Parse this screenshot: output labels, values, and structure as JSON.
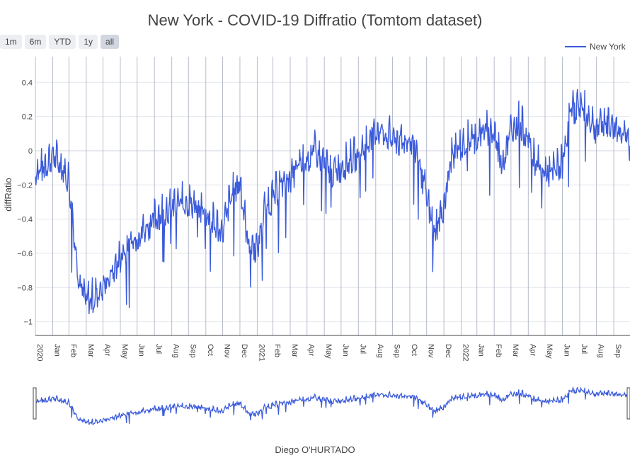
{
  "chart": {
    "title": "New York - COVID-19 Diffratio (Tomtom dataset)",
    "footer": "Diego O'HURTADO"
  },
  "range_selector": {
    "buttons": [
      "1m",
      "6m",
      "YTD",
      "1y",
      "all"
    ],
    "active": "all"
  },
  "colors": {
    "line": "#3b5bdb",
    "grid": "#e6e6ef",
    "monthline": "#9aa1b6",
    "zero": "#cfd3dc"
  },
  "chart_data": {
    "type": "line",
    "title": "New York - COVID-19 Diffratio (Tomtom dataset)",
    "xlabel": "",
    "ylabel": "diffRatio",
    "ylim": [
      -1.08,
      0.55
    ],
    "yticks": [
      0.4,
      0.2,
      0,
      -0.2,
      -0.4,
      -0.6,
      -0.8,
      -1
    ],
    "ytick_labels": [
      "0.4",
      "0.2",
      "0",
      "−0.2",
      "−0.4",
      "−0.6",
      "−0.8",
      "−1"
    ],
    "x_start": "2020-01-01",
    "x_end": "2022-11-30",
    "xtick_labels": [
      "2020",
      "Jan",
      "Feb",
      "Mar",
      "Apr",
      "May",
      "Jun",
      "Jul",
      "Aug",
      "Sep",
      "Oct",
      "Nov",
      "Dec",
      "2021",
      "Feb",
      "Mar",
      "Apr",
      "May",
      "Jun",
      "Jul",
      "Aug",
      "Sep",
      "Oct",
      "Nov",
      "Dec",
      "2022",
      "Jan",
      "Feb",
      "Mar",
      "Apr",
      "May",
      "Jun",
      "Jul",
      "Aug",
      "Sep",
      "Oct",
      "Nov"
    ],
    "legend": {
      "placement": "top-right",
      "entries": [
        "New York"
      ]
    },
    "grid": true,
    "series": [
      {
        "name": "New York",
        "x": [
          "2020-01-01",
          "2020-01-15",
          "2020-02-01",
          "2020-02-15",
          "2020-03-01",
          "2020-03-10",
          "2020-03-20",
          "2020-04-01",
          "2020-04-15",
          "2020-05-01",
          "2020-05-15",
          "2020-06-01",
          "2020-06-15",
          "2020-07-01",
          "2020-07-15",
          "2020-08-01",
          "2020-08-15",
          "2020-09-01",
          "2020-09-15",
          "2020-10-01",
          "2020-10-15",
          "2020-11-01",
          "2020-11-15",
          "2020-12-01",
          "2020-12-15",
          "2021-01-01",
          "2021-01-15",
          "2021-02-01",
          "2021-02-15",
          "2021-03-01",
          "2021-03-15",
          "2021-04-01",
          "2021-04-15",
          "2021-05-01",
          "2021-05-15",
          "2021-06-01",
          "2021-06-15",
          "2021-07-01",
          "2021-07-15",
          "2021-08-01",
          "2021-08-15",
          "2021-09-01",
          "2021-09-15",
          "2021-10-01",
          "2021-10-15",
          "2021-11-01",
          "2021-11-15",
          "2021-12-01",
          "2021-12-15",
          "2022-01-01",
          "2022-01-15",
          "2022-02-01",
          "2022-02-15",
          "2022-03-01",
          "2022-03-15",
          "2022-04-01",
          "2022-04-15",
          "2022-05-01",
          "2022-05-15",
          "2022-06-01",
          "2022-06-15",
          "2022-07-01",
          "2022-07-15",
          "2022-08-01",
          "2022-08-15",
          "2022-09-01",
          "2022-09-15",
          "2022-10-01",
          "2022-10-15",
          "2022-11-01",
          "2022-11-15",
          "2022-11-30"
        ],
        "y": [
          -0.15,
          -0.12,
          -0.05,
          -0.1,
          -0.2,
          -0.5,
          -0.8,
          -0.9,
          -0.88,
          -0.82,
          -0.75,
          -0.65,
          -0.58,
          -0.52,
          -0.48,
          -0.42,
          -0.38,
          -0.35,
          -0.33,
          -0.32,
          -0.35,
          -0.38,
          -0.45,
          -0.5,
          -0.3,
          -0.2,
          -0.55,
          -0.6,
          -0.35,
          -0.3,
          -0.22,
          -0.18,
          -0.12,
          -0.08,
          -0.02,
          -0.1,
          -0.15,
          -0.12,
          -0.08,
          -0.05,
          0.02,
          0.1,
          0.08,
          0.05,
          0.02,
          0.05,
          -0.05,
          -0.3,
          -0.5,
          -0.35,
          -0.05,
          0.0,
          0.05,
          0.05,
          0.1,
          0.08,
          -0.1,
          0.1,
          0.15,
          0.05,
          -0.1,
          -0.15,
          -0.15,
          -0.1,
          0.2,
          0.25,
          0.18,
          0.1,
          0.15,
          0.12,
          0.1,
          0.0
        ]
      }
    ]
  }
}
